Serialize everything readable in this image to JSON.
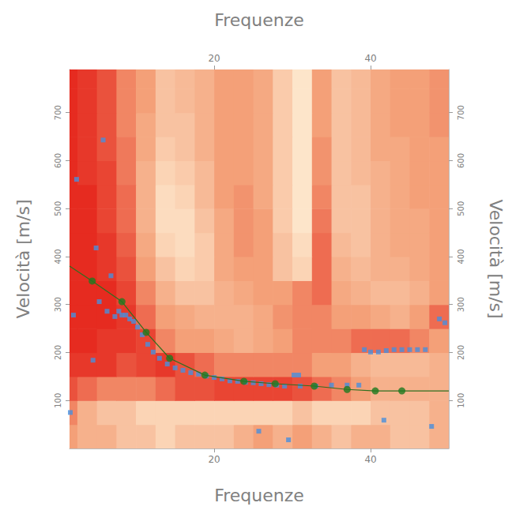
{
  "chart_data": {
    "type": "scatter",
    "x_label": "Frequenze",
    "y_label": "Velocità [m/s]",
    "xlim": [
      1.5,
      50
    ],
    "xticks": [
      20,
      40
    ],
    "ylim": [
      0,
      790
    ],
    "yticks": [
      100,
      200,
      300,
      400,
      500,
      600,
      700
    ],
    "grid": false,
    "heatmap": {
      "x_edges": [
        0,
        2.5,
        5,
        7.5,
        10,
        12.5,
        15,
        17.5,
        20,
        22.5,
        25,
        27.5,
        30,
        32.5,
        35,
        37.5,
        40,
        42.5,
        45,
        47.5,
        50
      ],
      "y_edges": [
        0,
        50,
        100,
        150,
        200,
        250,
        300,
        350,
        400,
        450,
        500,
        550,
        600,
        650,
        700,
        750,
        800
      ],
      "cell_range": [
        0,
        1
      ],
      "values": [
        [
          0.5,
          0.4,
          0.4,
          0.3,
          0.3,
          0.2,
          0.3,
          0.3,
          0.3,
          0.4,
          0.5,
          0.4,
          0.5,
          0.4,
          0.3,
          0.4,
          0.4,
          0.3,
          0.3,
          0.4
        ],
        [
          0.6,
          0.4,
          0.3,
          0.3,
          0.2,
          0.2,
          0.2,
          0.2,
          0.2,
          0.2,
          0.2,
          0.2,
          0.3,
          0.2,
          0.2,
          0.2,
          0.3,
          0.3,
          0.3,
          0.4
        ],
        [
          0.8,
          0.7,
          0.6,
          0.6,
          0.6,
          0.7,
          0.8,
          0.8,
          0.85,
          0.85,
          0.85,
          0.85,
          0.8,
          0.7,
          0.6,
          0.5,
          0.4,
          0.4,
          0.4,
          0.4
        ],
        [
          0.9,
          0.9,
          0.9,
          0.8,
          0.85,
          0.9,
          0.8,
          0.7,
          0.6,
          0.6,
          0.6,
          0.6,
          0.6,
          0.5,
          0.5,
          0.4,
          0.35,
          0.35,
          0.35,
          0.4
        ],
        [
          0.95,
          0.95,
          0.9,
          0.9,
          0.85,
          0.6,
          0.5,
          0.5,
          0.45,
          0.4,
          0.45,
          0.5,
          0.6,
          0.6,
          0.6,
          0.7,
          0.7,
          0.7,
          0.6,
          0.5
        ],
        [
          0.95,
          0.95,
          0.95,
          0.9,
          0.7,
          0.5,
          0.45,
          0.4,
          0.4,
          0.4,
          0.45,
          0.55,
          0.6,
          0.6,
          0.5,
          0.5,
          0.45,
          0.4,
          0.5,
          0.7
        ],
        [
          0.95,
          0.95,
          0.95,
          0.85,
          0.6,
          0.4,
          0.3,
          0.3,
          0.4,
          0.45,
          0.5,
          0.5,
          0.6,
          0.7,
          0.45,
          0.4,
          0.35,
          0.35,
          0.4,
          0.5
        ],
        [
          0.95,
          0.95,
          0.9,
          0.8,
          0.5,
          0.3,
          0.2,
          0.25,
          0.45,
          0.5,
          0.5,
          0.3,
          0.2,
          0.7,
          0.4,
          0.35,
          0.4,
          0.4,
          0.45,
          0.5
        ],
        [
          0.95,
          0.95,
          0.9,
          0.75,
          0.45,
          0.2,
          0.15,
          0.25,
          0.45,
          0.55,
          0.5,
          0.3,
          0.15,
          0.7,
          0.35,
          0.3,
          0.4,
          0.45,
          0.45,
          0.5
        ],
        [
          0.95,
          0.95,
          0.85,
          0.7,
          0.4,
          0.15,
          0.15,
          0.3,
          0.45,
          0.55,
          0.5,
          0.25,
          0.1,
          0.65,
          0.3,
          0.3,
          0.4,
          0.45,
          0.45,
          0.5
        ],
        [
          0.95,
          0.95,
          0.85,
          0.7,
          0.4,
          0.15,
          0.2,
          0.35,
          0.5,
          0.55,
          0.45,
          0.25,
          0.1,
          0.6,
          0.3,
          0.3,
          0.4,
          0.45,
          0.5,
          0.5
        ],
        [
          0.95,
          0.9,
          0.85,
          0.65,
          0.4,
          0.2,
          0.25,
          0.35,
          0.5,
          0.5,
          0.45,
          0.25,
          0.1,
          0.55,
          0.3,
          0.35,
          0.4,
          0.45,
          0.5,
          0.5
        ],
        [
          0.95,
          0.9,
          0.8,
          0.65,
          0.45,
          0.25,
          0.3,
          0.4,
          0.5,
          0.5,
          0.45,
          0.25,
          0.1,
          0.55,
          0.3,
          0.35,
          0.45,
          0.45,
          0.5,
          0.5
        ],
        [
          0.95,
          0.9,
          0.8,
          0.6,
          0.45,
          0.3,
          0.3,
          0.4,
          0.5,
          0.5,
          0.45,
          0.25,
          0.1,
          0.5,
          0.3,
          0.35,
          0.45,
          0.5,
          0.5,
          0.55
        ],
        [
          0.95,
          0.9,
          0.8,
          0.6,
          0.5,
          0.3,
          0.35,
          0.4,
          0.5,
          0.5,
          0.45,
          0.25,
          0.1,
          0.5,
          0.3,
          0.35,
          0.45,
          0.5,
          0.5,
          0.55
        ],
        [
          0.95,
          0.9,
          0.8,
          0.6,
          0.5,
          0.3,
          0.35,
          0.4,
          0.5,
          0.5,
          0.45,
          0.25,
          0.1,
          0.5,
          0.3,
          0.35,
          0.45,
          0.5,
          0.5,
          0.55
        ]
      ]
    },
    "series": [
      {
        "type": "scatter",
        "color": "#4a8fdc",
        "marker": "square",
        "x": [
          1.6,
          2,
          2.4,
          4.5,
          4.9,
          5.3,
          5.8,
          6.3,
          6.8,
          7.3,
          7.8,
          8.2,
          8.7,
          9.2,
          9.7,
          10.2,
          10.8,
          11.5,
          12.2,
          13,
          14,
          15,
          16,
          17,
          18,
          19,
          20,
          21,
          22,
          23,
          24,
          25,
          26,
          27,
          28,
          29,
          30.2,
          30.8,
          31,
          33,
          35,
          37,
          38.5,
          25.7,
          29.5,
          39.2,
          40,
          41,
          42,
          43,
          44,
          45,
          46,
          47,
          41.7,
          47.8,
          48.8,
          49.5
        ],
        "values": [
          75,
          278,
          561,
          184,
          418,
          306,
          643,
          286,
          360,
          275,
          286,
          278,
          278,
          270,
          265,
          253,
          237,
          217,
          201,
          188,
          176,
          168,
          163,
          158,
          155,
          151,
          148,
          145,
          141,
          140,
          138,
          137,
          135,
          133,
          132,
          130,
          153,
          153,
          130,
          130,
          132,
          132,
          132,
          36,
          18,
          206,
          201,
          201,
          204,
          206,
          206,
          206,
          206,
          206,
          59,
          46,
          270,
          262
        ]
      },
      {
        "type": "line",
        "color": "#2f6f1f",
        "marker": "none",
        "line_style": "solid",
        "x": [
          1.5,
          4.4,
          8.2,
          11.3,
          14.3,
          18.8,
          23.8,
          27.8,
          32.8,
          37,
          40.6,
          44,
          50
        ],
        "values": [
          380,
          349,
          306,
          242,
          188,
          153,
          140,
          135,
          130,
          123,
          120,
          120,
          120
        ]
      },
      {
        "type": "scatter",
        "color": "#1f7a1f",
        "marker": "circle",
        "x": [
          4.4,
          8.2,
          11.3,
          14.3,
          18.8,
          23.8,
          27.8,
          32.8,
          37,
          40.6,
          44
        ],
        "values": [
          349,
          306,
          242,
          188,
          153,
          140,
          135,
          130,
          123,
          120,
          120
        ]
      }
    ]
  }
}
